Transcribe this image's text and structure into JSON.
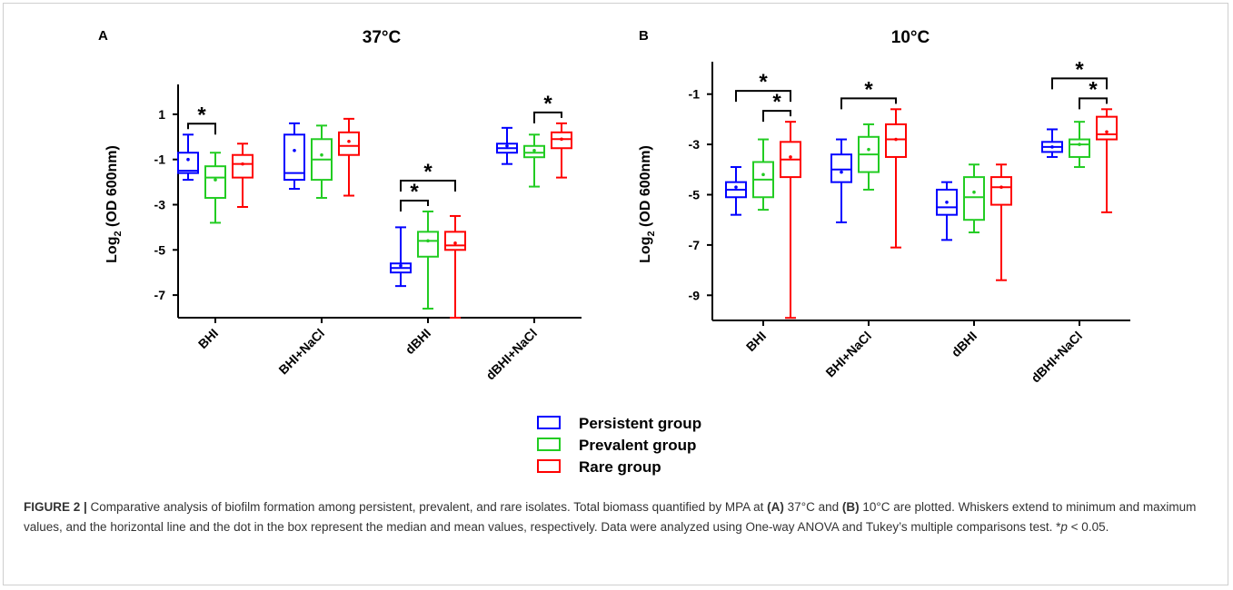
{
  "legend": [
    {
      "label": "Persistent group",
      "color": "#0000ff"
    },
    {
      "label": "Prevalent group",
      "color": "#22cc22"
    },
    {
      "label": "Rare group",
      "color": "#ff0000"
    }
  ],
  "caption": {
    "label": "FIGURE 2 |",
    "text_1": " Comparative analysis of biofilm formation among persistent, prevalent, and rare isolates. Total biomass quantified by MPA at ",
    "a_marker": "(A)",
    "text_2": " 37°C and ",
    "b_marker": "(B)",
    "text_3": " 10°C are plotted. Whiskers extend to minimum and maximum values, and the horizontal line and the dot in the box represent the median and mean values, respectively. Data were analyzed using One-way ANOVA and Tukey’s multiple comparisons test. *",
    "p_symbol": "p",
    "text_4": " < 0.05."
  },
  "chart_data": [
    {
      "type": "box",
      "panel": "A",
      "title": "37°C",
      "ylabel_main": "Log",
      "ylabel_sub": "2",
      "ylabel_rest": " (OD 600nm)",
      "ylim": [
        -8,
        2
      ],
      "yticks": [
        1,
        -1,
        -3,
        -5,
        -7
      ],
      "categories": [
        "BHI",
        "BHI+NaCl",
        "dBHI",
        "dBHI+NaCl"
      ],
      "series": [
        {
          "name": "Persistent group",
          "color": "#0000ff",
          "boxes": [
            {
              "min": -1.9,
              "q1": -1.6,
              "median": -1.5,
              "q3": -0.7,
              "max": 0.1,
              "mean": -1.0
            },
            {
              "min": -2.3,
              "q1": -1.9,
              "median": -1.6,
              "q3": 0.1,
              "max": 0.6,
              "mean": -0.6
            },
            {
              "min": -6.6,
              "q1": -6.0,
              "median": -5.8,
              "q3": -5.6,
              "max": -4.0,
              "mean": -5.7
            },
            {
              "min": -1.2,
              "q1": -0.7,
              "median": -0.5,
              "q3": -0.3,
              "max": 0.4,
              "mean": -0.4
            }
          ]
        },
        {
          "name": "Prevalent group",
          "color": "#22cc22",
          "boxes": [
            {
              "min": -3.8,
              "q1": -2.7,
              "median": -1.8,
              "q3": -1.3,
              "max": -0.7,
              "mean": -1.9
            },
            {
              "min": -2.7,
              "q1": -1.9,
              "median": -1.0,
              "q3": -0.1,
              "max": 0.5,
              "mean": -0.8
            },
            {
              "min": -7.6,
              "q1": -5.3,
              "median": -4.6,
              "q3": -4.2,
              "max": -3.3,
              "mean": -4.6
            },
            {
              "min": -2.2,
              "q1": -0.9,
              "median": -0.7,
              "q3": -0.4,
              "max": 0.1,
              "mean": -0.6
            }
          ]
        },
        {
          "name": "Rare group",
          "color": "#ff0000",
          "boxes": [
            {
              "min": -3.1,
              "q1": -1.8,
              "median": -1.2,
              "q3": -0.8,
              "max": -0.3,
              "mean": -1.2
            },
            {
              "min": -2.6,
              "q1": -0.8,
              "median": -0.4,
              "q3": 0.2,
              "max": 0.8,
              "mean": -0.2
            },
            {
              "min": -8.0,
              "q1": -5.0,
              "median": -4.8,
              "q3": -4.2,
              "max": -3.5,
              "mean": -4.7
            },
            {
              "min": -1.8,
              "q1": -0.5,
              "median": -0.1,
              "q3": 0.2,
              "max": 0.6,
              "mean": -0.1
            }
          ]
        }
      ],
      "significance": [
        {
          "cat": 0,
          "from": 0,
          "to": 1,
          "level": 1,
          "label": "*"
        },
        {
          "cat": 2,
          "from": 0,
          "to": 1,
          "level": 1,
          "label": "*"
        },
        {
          "cat": 2,
          "from": 0,
          "to": 2,
          "level": 2,
          "label": "*"
        },
        {
          "cat": 3,
          "from": 1,
          "to": 2,
          "level": 1,
          "label": "*"
        }
      ]
    },
    {
      "type": "box",
      "panel": "B",
      "title": "10°C",
      "ylabel_main": "Log",
      "ylabel_sub": "2",
      "ylabel_rest": " (OD 600nm)",
      "ylim": [
        -10,
        0
      ],
      "yticks": [
        -1,
        -3,
        -5,
        -7,
        -9
      ],
      "categories": [
        "BHI",
        "BHI+NaCl",
        "dBHI",
        "dBHI+NaCl"
      ],
      "series": [
        {
          "name": "Persistent group",
          "color": "#0000ff",
          "boxes": [
            {
              "min": -5.8,
              "q1": -5.1,
              "median": -4.8,
              "q3": -4.5,
              "max": -3.9,
              "mean": -4.7
            },
            {
              "min": -6.1,
              "q1": -4.5,
              "median": -4.0,
              "q3": -3.4,
              "max": -2.8,
              "mean": -4.1
            },
            {
              "min": -6.8,
              "q1": -5.8,
              "median": -5.5,
              "q3": -4.8,
              "max": -4.5,
              "mean": -5.3
            },
            {
              "min": -3.5,
              "q1": -3.3,
              "median": -3.1,
              "q3": -2.9,
              "max": -2.4,
              "mean": -3.1
            }
          ]
        },
        {
          "name": "Prevalent group",
          "color": "#22cc22",
          "boxes": [
            {
              "min": -5.6,
              "q1": -5.1,
              "median": -4.4,
              "q3": -3.7,
              "max": -2.8,
              "mean": -4.2
            },
            {
              "min": -4.8,
              "q1": -4.1,
              "median": -3.4,
              "q3": -2.7,
              "max": -2.2,
              "mean": -3.2
            },
            {
              "min": -6.5,
              "q1": -6.0,
              "median": -5.1,
              "q3": -4.3,
              "max": -3.8,
              "mean": -4.9
            },
            {
              "min": -3.9,
              "q1": -3.5,
              "median": -3.0,
              "q3": -2.8,
              "max": -2.1,
              "mean": -3.0
            }
          ]
        },
        {
          "name": "Rare group",
          "color": "#ff0000",
          "boxes": [
            {
              "min": -9.9,
              "q1": -4.3,
              "median": -3.6,
              "q3": -2.9,
              "max": -2.1,
              "mean": -3.5
            },
            {
              "min": -7.1,
              "q1": -3.5,
              "median": -2.8,
              "q3": -2.2,
              "max": -1.6,
              "mean": -2.8
            },
            {
              "min": -8.4,
              "q1": -5.4,
              "median": -4.7,
              "q3": -4.3,
              "max": -3.8,
              "mean": -4.7
            },
            {
              "min": -5.7,
              "q1": -2.8,
              "median": -2.6,
              "q3": -1.9,
              "max": -1.6,
              "mean": -2.5
            }
          ]
        }
      ],
      "significance": [
        {
          "cat": 0,
          "from": 1,
          "to": 2,
          "level": 1,
          "label": "*"
        },
        {
          "cat": 0,
          "from": 0,
          "to": 2,
          "level": 2,
          "label": "*"
        },
        {
          "cat": 1,
          "from": 0,
          "to": 2,
          "level": 1,
          "label": "*"
        },
        {
          "cat": 3,
          "from": 1,
          "to": 2,
          "level": 1,
          "label": "*"
        },
        {
          "cat": 3,
          "from": 0,
          "to": 2,
          "level": 2,
          "label": "*"
        }
      ]
    }
  ]
}
